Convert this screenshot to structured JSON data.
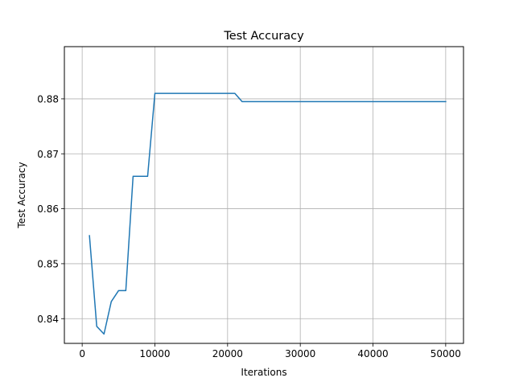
{
  "chart_data": {
    "type": "line",
    "title": "Test Accuracy",
    "xlabel": "Iterations",
    "ylabel": "Test Accuracy",
    "xlim": [
      -2450,
      52450
    ],
    "ylim": [
      0.8355,
      0.8895
    ],
    "xticks": [
      0,
      10000,
      20000,
      30000,
      40000,
      50000
    ],
    "xtick_labels": [
      "0",
      "10000",
      "20000",
      "30000",
      "40000",
      "50000"
    ],
    "yticks": [
      0.84,
      0.85,
      0.86,
      0.87,
      0.88
    ],
    "ytick_labels": [
      "0.84",
      "0.85",
      "0.86",
      "0.87",
      "0.88"
    ],
    "grid": true,
    "series": [
      {
        "color": "#1f77b4",
        "x": [
          1000,
          2000,
          3000,
          4000,
          5000,
          6000,
          7000,
          8000,
          9000,
          10000,
          11000,
          12000,
          13000,
          14000,
          15000,
          16000,
          17000,
          18000,
          19000,
          20000,
          21000,
          22000,
          23000,
          24000,
          25000,
          26000,
          27000,
          28000,
          29000,
          30000,
          31000,
          32000,
          33000,
          34000,
          35000,
          36000,
          37000,
          38000,
          39000,
          40000,
          41000,
          42000,
          43000,
          44000,
          45000,
          46000,
          47000,
          48000,
          49000,
          50000
        ],
        "y": [
          0.8551,
          0.8386,
          0.8372,
          0.8431,
          0.8451,
          0.8451,
          0.8659,
          0.8659,
          0.8659,
          0.881,
          0.881,
          0.881,
          0.881,
          0.881,
          0.881,
          0.881,
          0.881,
          0.881,
          0.881,
          0.881,
          0.881,
          0.8795,
          0.8795,
          0.8795,
          0.8795,
          0.8795,
          0.8795,
          0.8795,
          0.8795,
          0.8795,
          0.8795,
          0.8795,
          0.8795,
          0.8795,
          0.8795,
          0.8795,
          0.8795,
          0.8795,
          0.8795,
          0.8795,
          0.8795,
          0.8795,
          0.8795,
          0.8795,
          0.8795,
          0.8795,
          0.8795,
          0.8795,
          0.8795,
          0.8795
        ]
      }
    ]
  }
}
